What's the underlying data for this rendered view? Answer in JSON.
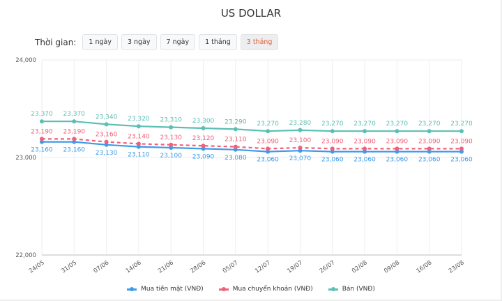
{
  "title": "US DOLLAR",
  "filter": {
    "label": "Thời gian:",
    "options": [
      "1 ngày",
      "3 ngày",
      "7 ngày",
      "1 tháng",
      "3 tháng"
    ],
    "selected": "3 tháng"
  },
  "chart_data": {
    "type": "line",
    "categories": [
      "24/05",
      "31/05",
      "07/06",
      "14/06",
      "21/06",
      "28/06",
      "05/07",
      "12/07",
      "19/07",
      "26/07",
      "02/08",
      "09/08",
      "16/08",
      "23/08"
    ],
    "ylim": [
      22000,
      24000
    ],
    "yticks": [
      "22,000",
      "23,000",
      "24,000"
    ],
    "grid": true,
    "legend": "bottom",
    "series": [
      {
        "name": "Mua tiền mặt (VNĐ)",
        "color": "#3d9be9",
        "dashed": false,
        "values": [
          23160,
          23160,
          23130,
          23110,
          23100,
          23090,
          23080,
          23060,
          23070,
          23060,
          23060,
          23060,
          23060,
          23060
        ],
        "label_pos": "below"
      },
      {
        "name": "Mua chuyển khoản (VNĐ)",
        "color": "#f0607a",
        "dashed": true,
        "values": [
          23190,
          23190,
          23160,
          23140,
          23130,
          23120,
          23110,
          23090,
          23100,
          23090,
          23090,
          23090,
          23090,
          23090
        ],
        "label_pos": "above"
      },
      {
        "name": "Bán (VNĐ)",
        "color": "#5bbfb5",
        "dashed": false,
        "values": [
          23370,
          23370,
          23340,
          23320,
          23310,
          23300,
          23290,
          23270,
          23280,
          23270,
          23270,
          23270,
          23270,
          23270
        ],
        "label_pos": "above"
      }
    ]
  }
}
